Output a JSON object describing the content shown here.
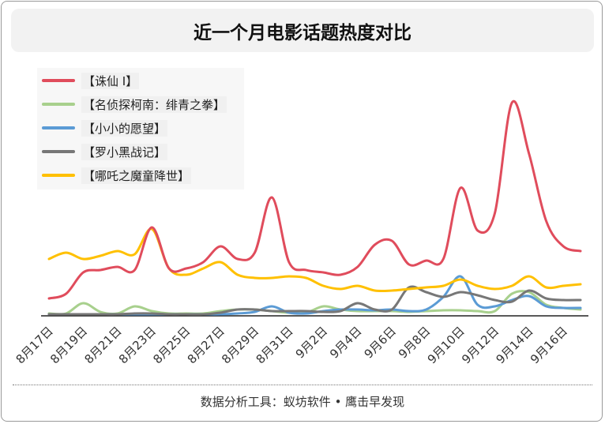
{
  "title": "近一个月电影话题热度对比",
  "footer": "数据分析工具：蚁坊软件 • 鹰击早发现",
  "chart_data": {
    "type": "line",
    "title": "近一个月电影话题热度对比",
    "xlabel": "",
    "ylabel": "",
    "x": [
      "8月17日",
      "8月18日",
      "8月19日",
      "8月20日",
      "8月21日",
      "8月22日",
      "8月23日",
      "8月24日",
      "8月25日",
      "8月26日",
      "8月27日",
      "8月28日",
      "8月29日",
      "8月30日",
      "8月31日",
      "9月1日",
      "9月2日",
      "9月3日",
      "9月4日",
      "9月5日",
      "9月6日",
      "9月7日",
      "9月8日",
      "9月9日",
      "9月10日",
      "9月11日",
      "9月12日",
      "9月13日",
      "9月14日",
      "9月15日",
      "9月16日",
      "9月17日"
    ],
    "tick_labels": [
      "8月17日",
      "8月19日",
      "8月21日",
      "8月23日",
      "8月25日",
      "8月27日",
      "8月29日",
      "8月31日",
      "9月2日",
      "9月4日",
      "9月6日",
      "9月8日",
      "9月10日",
      "9月12日",
      "9月14日",
      "9月16日"
    ],
    "ylim": [
      0,
      290
    ],
    "grid": false,
    "legend_position": "top-left",
    "series": [
      {
        "name": "【诛仙 Ⅰ】",
        "color": "#e04c5c",
        "values": [
          22,
          28,
          55,
          58,
          62,
          58,
          112,
          60,
          60,
          68,
          88,
          72,
          80,
          150,
          68,
          58,
          55,
          52,
          62,
          90,
          95,
          65,
          70,
          72,
          162,
          108,
          130,
          270,
          205,
          120,
          88,
          82
        ]
      },
      {
        "name": "【名侦探柯南：绯青之拳】",
        "color": "#a8d08d",
        "values": [
          3,
          3,
          16,
          5,
          3,
          12,
          6,
          3,
          3,
          3,
          6,
          8,
          8,
          6,
          4,
          4,
          12,
          8,
          6,
          6,
          6,
          5,
          6,
          7,
          7,
          6,
          6,
          28,
          30,
          14,
          10,
          8
        ]
      },
      {
        "name": "【小小的愿望】",
        "color": "#5b9bd5",
        "values": [
          2,
          2,
          2,
          2,
          2,
          2,
          2,
          2,
          2,
          2,
          2,
          3,
          5,
          12,
          4,
          3,
          6,
          8,
          8,
          7,
          8,
          6,
          8,
          24,
          50,
          14,
          12,
          20,
          25,
          12,
          10,
          10
        ]
      },
      {
        "name": "【罗小黑战记】",
        "color": "#777777",
        "values": [
          2,
          2,
          2,
          2,
          2,
          3,
          3,
          2,
          2,
          2,
          4,
          8,
          8,
          6,
          6,
          6,
          5,
          6,
          16,
          8,
          8,
          36,
          30,
          24,
          30,
          26,
          20,
          18,
          32,
          22,
          20,
          20
        ]
      },
      {
        "name": "【哪吒之魔童降世】",
        "color": "#ffc000",
        "values": [
          72,
          80,
          72,
          76,
          82,
          78,
          110,
          60,
          52,
          60,
          68,
          52,
          48,
          48,
          50,
          48,
          38,
          34,
          38,
          32,
          32,
          34,
          36,
          38,
          46,
          38,
          34,
          38,
          50,
          36,
          38,
          40
        ]
      }
    ]
  }
}
